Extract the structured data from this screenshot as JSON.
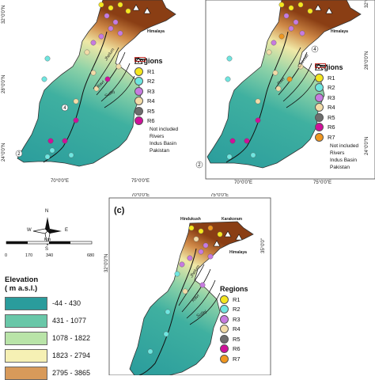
{
  "colors": {
    "sea": "#ffffff",
    "elev": [
      "#2a9c9c",
      "#69c7a8",
      "#b9e4a8",
      "#f6f0b4",
      "#d89a5a",
      "#a4521e"
    ]
  },
  "regions": [
    {
      "id": "R1",
      "label": "R1",
      "color": "#f5e61e"
    },
    {
      "id": "R2",
      "label": "R2",
      "color": "#6fe6e0"
    },
    {
      "id": "R3",
      "label": "R3",
      "color": "#c77be0"
    },
    {
      "id": "R4",
      "label": "R4",
      "color": "#f3dca8"
    },
    {
      "id": "R5",
      "label": "R5",
      "color": "#6d6d6d"
    },
    {
      "id": "R6",
      "label": "R6",
      "color": "#d0109a"
    },
    {
      "id": "R7",
      "label": "R7",
      "color": "#f0961e"
    }
  ],
  "legend": {
    "title": "Regions",
    "not_included": "Not included",
    "rivers": "Rivers",
    "indus_basin": "Indus Basin",
    "pakistan": "Pakistan"
  },
  "panel_c_label": "(c)",
  "coords": {
    "lat_32": "32°0'0\"N",
    "lat_28": "28°0'0\"N",
    "lat_24": "24°0'0\"N",
    "lat_35": "35°0'0\"",
    "lon_70": "70°0'0\"E",
    "lon_75": "75°0'0\"E"
  },
  "places": {
    "himalaya": "Himalaya",
    "hindukush": "Hindukush",
    "karakoram": "Karakoram"
  },
  "rivers": {
    "jhelum": "Jhelum",
    "chenab": "Chenab",
    "ravi": "Ravi",
    "sutlej": "Sutlej",
    "indus": "Indus"
  },
  "scale": {
    "unit": "Km",
    "ticks": [
      "0",
      "170",
      "340",
      "680"
    ]
  },
  "compass": {
    "n": "N",
    "s": "S",
    "e": "E",
    "w": "W"
  },
  "elevation": {
    "title_line1": "Elevation",
    "title_line2": "( m a.s.l.)",
    "classes": [
      "-44 - 430",
      "431 - 1077",
      "1078 - 1822",
      "1823 - 2794",
      "2795 - 3865"
    ]
  },
  "region_numbers": [
    "2",
    "4"
  ]
}
